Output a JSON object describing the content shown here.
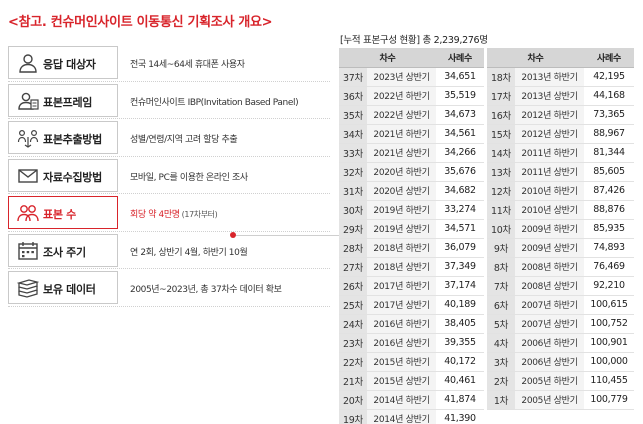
{
  "title": "<참고. 컨슈머인사이트 이동통신 기획조사 개요>",
  "rows": [
    {
      "label": "응답 대상자",
      "value": "전국 14세~64세 휴대폰 사용자",
      "sub": ""
    },
    {
      "label": "표본프레임",
      "value": "컨슈머인사이트 IBP(Invitation Based Panel)",
      "sub": ""
    },
    {
      "label": "표본추출방법",
      "value": "성별/연령/지역 고려 할당 추출",
      "sub": ""
    },
    {
      "label": "자료수집방법",
      "value": "모바일, PC를 이용한 온라인 조사",
      "sub": ""
    },
    {
      "label": "표본 수",
      "value": "회당 약 4만명",
      "sub": "(17차부터)"
    },
    {
      "label": "조사 주기",
      "value": "연 2회, 상반기 4월, 하반기 10월",
      "sub": ""
    },
    {
      "label": "보유 데이터",
      "value": "2005년~2023년, 총 37차수 데이터 확보",
      "sub": ""
    }
  ],
  "table_title": "[누적 표본구성 현황] 총 2,239,276명",
  "headers": {
    "round": "차수",
    "count": "사례수"
  },
  "left": [
    {
      "no": "37차",
      "period": "2023년 상반기",
      "count": "34,651"
    },
    {
      "no": "36차",
      "period": "2022년 하반기",
      "count": "35,519"
    },
    {
      "no": "35차",
      "period": "2022년 상반기",
      "count": "34,673"
    },
    {
      "no": "34차",
      "period": "2021년 하반기",
      "count": "34,561"
    },
    {
      "no": "33차",
      "period": "2021년 상반기",
      "count": "34,266"
    },
    {
      "no": "32차",
      "period": "2020년 하반기",
      "count": "35,676"
    },
    {
      "no": "31차",
      "period": "2020년 상반기",
      "count": "34,682"
    },
    {
      "no": "30차",
      "period": "2019년 하반기",
      "count": "33,274"
    },
    {
      "no": "29차",
      "period": "2019년 상반기",
      "count": "34,571"
    },
    {
      "no": "28차",
      "period": "2018년 하반기",
      "count": "36,079"
    },
    {
      "no": "27차",
      "period": "2018년 상반기",
      "count": "37,349"
    },
    {
      "no": "26차",
      "period": "2017년 하반기",
      "count": "37,174"
    },
    {
      "no": "25차",
      "period": "2017년 상반기",
      "count": "40,189"
    },
    {
      "no": "24차",
      "period": "2016년 하반기",
      "count": "38,405"
    },
    {
      "no": "23차",
      "period": "2016년 상반기",
      "count": "39,355"
    },
    {
      "no": "22차",
      "period": "2015년 하반기",
      "count": "40,172"
    },
    {
      "no": "21차",
      "period": "2015년 상반기",
      "count": "40,461"
    },
    {
      "no": "20차",
      "period": "2014년 하반기",
      "count": "41,874"
    },
    {
      "no": "19차",
      "period": "2014년 상반기",
      "count": "41,390"
    }
  ],
  "right": [
    {
      "no": "18차",
      "period": "2013년 하반기",
      "count": "42,195"
    },
    {
      "no": "17차",
      "period": "2013년 상반기",
      "count": "44,168"
    },
    {
      "no": "16차",
      "period": "2012년 하반기",
      "count": "73,365"
    },
    {
      "no": "15차",
      "period": "2012년 상반기",
      "count": "88,967"
    },
    {
      "no": "14차",
      "period": "2011년 하반기",
      "count": "81,344"
    },
    {
      "no": "13차",
      "period": "2011년 상반기",
      "count": "85,605"
    },
    {
      "no": "12차",
      "period": "2010년 하반기",
      "count": "87,426"
    },
    {
      "no": "11차",
      "period": "2010년 상반기",
      "count": "88,876"
    },
    {
      "no": "10차",
      "period": "2009년 하반기",
      "count": "85,935"
    },
    {
      "no": "9차",
      "period": "2009년 상반기",
      "count": "74,893"
    },
    {
      "no": "8차",
      "period": "2008년 하반기",
      "count": "76,469"
    },
    {
      "no": "7차",
      "period": "2008년 상반기",
      "count": "92,210"
    },
    {
      "no": "6차",
      "period": "2007년 하반기",
      "count": "100,615"
    },
    {
      "no": "5차",
      "period": "2007년 상반기",
      "count": "100,752"
    },
    {
      "no": "4차",
      "period": "2006년 하반기",
      "count": "100,901"
    },
    {
      "no": "3차",
      "period": "2006년 상반기",
      "count": "100,000"
    },
    {
      "no": "2차",
      "period": "2005년 하반기",
      "count": "110,455"
    },
    {
      "no": "1차",
      "period": "2005년 상반기",
      "count": "100,779"
    }
  ]
}
